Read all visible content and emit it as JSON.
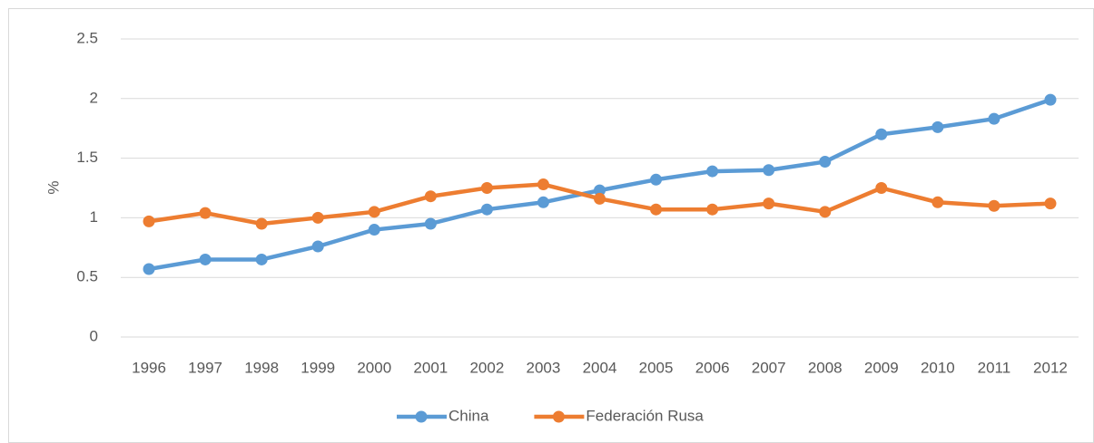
{
  "chart_data": {
    "type": "line",
    "ylabel": "%",
    "categories": [
      "1996",
      "1997",
      "1998",
      "1999",
      "2000",
      "2001",
      "2002",
      "2003",
      "2004",
      "2005",
      "2006",
      "2007",
      "2008",
      "2009",
      "2010",
      "2011",
      "2012"
    ],
    "series": [
      {
        "name": "China",
        "color": "#5b9bd5",
        "values": [
          0.57,
          0.65,
          0.65,
          0.76,
          0.9,
          0.95,
          1.07,
          1.13,
          1.23,
          1.32,
          1.39,
          1.4,
          1.47,
          1.7,
          1.76,
          1.83,
          1.99
        ]
      },
      {
        "name": "Federación Rusa",
        "color": "#ed7d31",
        "values": [
          0.97,
          1.04,
          0.95,
          1.0,
          1.05,
          1.18,
          1.25,
          1.28,
          1.16,
          1.07,
          1.07,
          1.12,
          1.05,
          1.25,
          1.13,
          1.1,
          1.12
        ]
      }
    ],
    "ylim": [
      0,
      2.5
    ],
    "yticks": [
      0,
      0.5,
      1,
      1.5,
      2,
      2.5
    ],
    "grid": true,
    "legend": "bottom"
  }
}
